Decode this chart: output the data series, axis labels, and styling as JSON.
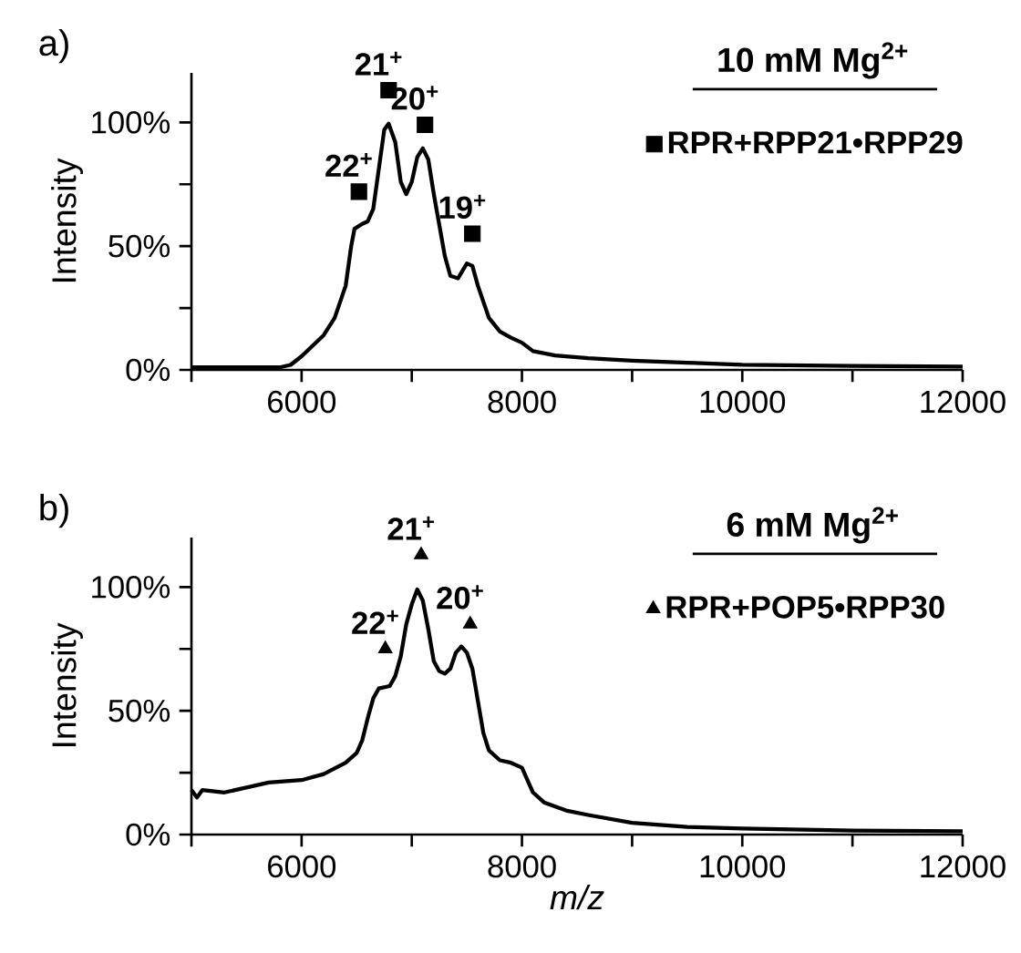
{
  "chart_data": [
    {
      "type": "line",
      "title": "a)",
      "subtitle": "10 mM Mg$^{2+}$",
      "ylabel": "Intensity",
      "xlim": [
        5000,
        12000
      ],
      "xticks": [
        {
          "value": 5000,
          "label": null
        },
        6000,
        {
          "value": 7000,
          "label": null
        },
        8000,
        {
          "value": 9000,
          "label": null
        },
        10000,
        {
          "value": 11000,
          "label": null
        },
        12000
      ],
      "ylim": [
        0,
        120
      ],
      "yticks": [
        {
          "value": 0,
          "label": "0%"
        },
        {
          "value": 25,
          "label": null
        },
        {
          "value": 50,
          "label": "50%"
        },
        {
          "value": 75,
          "label": null
        },
        {
          "value": 100,
          "label": "100%"
        }
      ],
      "legend": "top right",
      "series": [
        {
          "color": "#000000",
          "x": [
            5000,
            5800,
            5900,
            6000,
            6200,
            6300,
            6400,
            6450,
            6480,
            6550,
            6600,
            6650,
            6700,
            6750,
            6790,
            6850,
            6900,
            6950,
            7000,
            7050,
            7100,
            7150,
            7200,
            7300,
            7350,
            7420,
            7500,
            7550,
            7600,
            7700,
            7800,
            7900,
            8000,
            8100,
            8300,
            8600,
            9000,
            9500,
            10000,
            11000,
            12000
          ],
          "values": [
            1,
            1,
            2,
            5.5,
            14,
            21,
            34,
            50,
            57,
            59,
            60,
            65,
            81,
            97,
            99.5,
            92,
            76,
            71,
            76,
            86,
            89.5,
            85,
            71,
            46,
            38,
            37,
            43,
            42,
            34,
            21,
            15.5,
            13,
            11,
            7.6,
            5.8,
            4.7,
            3.7,
            2.9,
            2.1,
            1.6,
            1.3
          ]
        },
        {
          "type": "scatter",
          "name": "RPR+RPP21•RPP29",
          "color": "#000000",
          "marker": "square",
          "x": [
            6520,
            6790,
            7120,
            7550
          ],
          "values": [
            72,
            113,
            99,
            55
          ]
        }
      ],
      "annotations": [
        {
          "text": "22$^{+}$",
          "x": 6520,
          "y": 72
        },
        {
          "text": "21$^{+}$",
          "x": 6790,
          "y": 113
        },
        {
          "text": "20$^{+}$",
          "x": 7120,
          "y": 99
        },
        {
          "text": "19$^{+}$",
          "x": 7550,
          "y": 55
        }
      ]
    },
    {
      "type": "line",
      "title": "b)",
      "subtitle": "6 mM Mg$^{2+}$",
      "xlabel": "m/z",
      "ylabel": "Intensity",
      "xlim": [
        5000,
        12000
      ],
      "xticks": [
        {
          "value": 5000,
          "label": null
        },
        6000,
        {
          "value": 7000,
          "label": null
        },
        8000,
        {
          "value": 9000,
          "label": null
        },
        10000,
        {
          "value": 11000,
          "label": null
        },
        12000
      ],
      "ylim": [
        0,
        120
      ],
      "yticks": [
        {
          "value": 0,
          "label": "0%"
        },
        {
          "value": 25,
          "label": null
        },
        {
          "value": 50,
          "label": "50%"
        },
        {
          "value": 75,
          "label": null
        },
        {
          "value": 100,
          "label": "100%"
        }
      ],
      "legend": "top right",
      "series": [
        {
          "color": "#000000",
          "x": [
            5000,
            5050,
            5100,
            5300,
            5500,
            5700,
            6000,
            6200,
            6400,
            6500,
            6550,
            6600,
            6650,
            6700,
            6800,
            6850,
            6900,
            6950,
            7000,
            7050,
            7100,
            7150,
            7200,
            7250,
            7300,
            7350,
            7400,
            7450,
            7500,
            7550,
            7600,
            7650,
            7700,
            7800,
            7900,
            8000,
            8050,
            8100,
            8200,
            8400,
            8600,
            9000,
            9500,
            10000,
            11000,
            12000
          ],
          "values": [
            18,
            15,
            18,
            17,
            19,
            21,
            22,
            24.4,
            29,
            33,
            38,
            47,
            55,
            59,
            60,
            64,
            72,
            85,
            93,
            99,
            94.5,
            83,
            70,
            66,
            65,
            67,
            73.5,
            76,
            73.5,
            67,
            54,
            41,
            34,
            30,
            29,
            27,
            22,
            17,
            13,
            9.7,
            7.9,
            4.7,
            3.1,
            2.4,
            1.6,
            1.3
          ]
        },
        {
          "type": "scatter",
          "name": "RPR+POP5•RPP30",
          "color": "#000000",
          "marker": "triangle",
          "x": [
            6760,
            7085,
            7530
          ],
          "values": [
            75,
            113,
            85
          ]
        }
      ],
      "annotations": [
        {
          "text": "22$^{+}$",
          "x": 6760,
          "y": 75
        },
        {
          "text": "21$^{+}$",
          "x": 7085,
          "y": 113
        },
        {
          "text": "20$^{+}$",
          "x": 7530,
          "y": 85
        }
      ]
    }
  ]
}
